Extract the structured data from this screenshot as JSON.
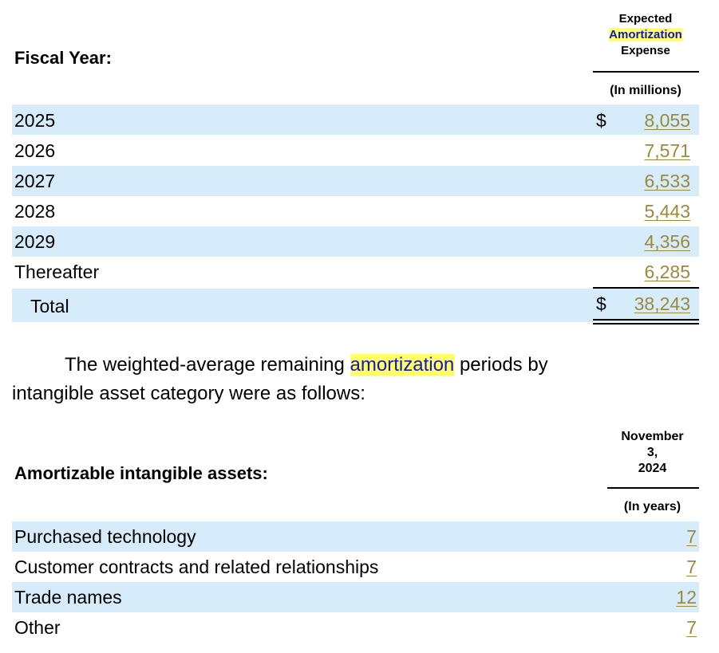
{
  "table1": {
    "label_header": "Fiscal Year:",
    "col_header_line1": "Expected",
    "col_header_line2": "Amortization",
    "col_header_line3": "Expense",
    "unit": "(In millions)",
    "currency": "$",
    "rows": [
      {
        "label": "2025",
        "value": "8,055"
      },
      {
        "label": "2026",
        "value": "7,571"
      },
      {
        "label": "2027",
        "value": "6,533"
      },
      {
        "label": "2028",
        "value": "5,443"
      },
      {
        "label": "2029",
        "value": "4,356"
      },
      {
        "label": "Thereafter",
        "value": "6,285"
      }
    ],
    "total_label": "Total",
    "total_value": "38,243"
  },
  "paragraph": {
    "before": "The weighted-average remaining ",
    "highlight": "amortization",
    "after": " periods by",
    "line2": "intangible asset category were as follows:"
  },
  "table2": {
    "label_header": "Amortizable intangible assets:",
    "col_header_line1": "November",
    "col_header_line2": "3,",
    "col_header_line3": "2024",
    "unit": "(In years)",
    "rows": [
      {
        "label": "Purchased technology",
        "value": "7"
      },
      {
        "label": "Customer contracts and related relationships",
        "value": "7"
      },
      {
        "label": "Trade names",
        "value": "12"
      },
      {
        "label": "Other",
        "value": "7"
      }
    ]
  },
  "colors": {
    "band": "#d6ecfa",
    "link": "#9a8a3a",
    "highlight": "#ffff66",
    "blue_text": "#1414c8"
  }
}
